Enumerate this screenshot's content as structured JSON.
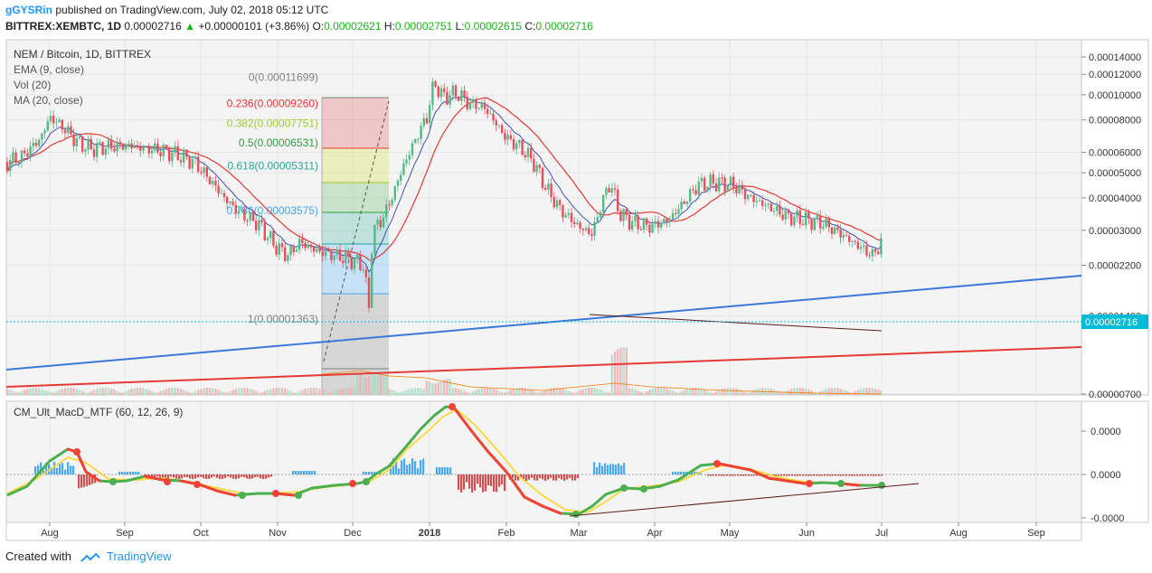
{
  "header": {
    "author": "gGYSRin",
    "published_text": "published on TradingView.com, July 02, 2018 05:12 UTC",
    "symbol": "BITTREX:XEMBTC, 1D",
    "price": "0.00002716",
    "change_icon": "up-triangle-icon",
    "change": "+0.00000101 (+3.86%)",
    "o_label": "O:",
    "o": "0.00002621",
    "h_label": "H:",
    "h": "0.00002751",
    "l_label": "L:",
    "l": "0.00002615",
    "c_label": "C:",
    "c": "0.00002716"
  },
  "legend": {
    "title": "NEM / Bitcoin, 1D, BITTREX",
    "ema": "EMA (9, close)",
    "vol": "Vol (20)",
    "ma": "MA (20, close)"
  },
  "fib": {
    "levels": [
      {
        "label": "0(0.00011699)",
        "value": 0.00011699,
        "color": "#808080"
      },
      {
        "label": "0.236(0.00009260)",
        "value": 9.26e-05,
        "color": "#e53935"
      },
      {
        "label": "0.382(0.00007751)",
        "value": 7.751e-05,
        "color": "#9ccc2d"
      },
      {
        "label": "0.5(0.00006531)",
        "value": 6.531e-05,
        "color": "#2e9e3e"
      },
      {
        "label": "0.618(0.00005311)",
        "value": 5.311e-05,
        "color": "#26a69a"
      },
      {
        "label": "0.786(0.00003575)",
        "value": 3.575e-05,
        "color": "#42a5f5"
      },
      {
        "label": "1(0.00001363)",
        "value": 1.363e-05,
        "color": "#808080"
      }
    ]
  },
  "price_axis": {
    "ticks": [
      "0.00014000",
      "0.00012000",
      "0.00010000",
      "0.00008000",
      "0.00006000",
      "0.00005000",
      "0.00004000",
      "0.00003000",
      "0.00002200",
      "0.00001400",
      "0.00000700"
    ],
    "tick_values": [
      0.00014,
      0.00012,
      0.0001,
      8e-05,
      6e-05,
      5e-05,
      4e-05,
      3e-05,
      2.2e-05,
      1.4e-05,
      7e-06
    ],
    "current_label": "0.00002716",
    "current_color": "#00bcd4"
  },
  "macd": {
    "title": "CM_Ult_MacD_MTF (60, 12, 26, 9)",
    "ticks": [
      "0.0000",
      "0.0000",
      "-0.0000"
    ]
  },
  "time_axis": {
    "labels": [
      "Aug",
      "Sep",
      "Oct",
      "Nov",
      "Dec",
      "2018",
      "Feb",
      "Mar",
      "Apr",
      "May",
      "Jun",
      "Jul",
      "Aug",
      "Sep"
    ]
  },
  "footer": {
    "created_with": "Created with",
    "brand": "TradingView",
    "logo_icon": "tradingview-logo-icon"
  },
  "chart_data": {
    "type": "candlestick",
    "title": "NEM / Bitcoin, 1D, BITTREX",
    "scale": "log",
    "ylim": [
      7e-06,
      0.00014
    ],
    "series": [
      {
        "name": "close",
        "values": [
          5.5e-05,
          6.7e-05,
          8.4e-05,
          7e-05,
          6.4e-05,
          6.2e-05,
          6.3e-05,
          5.8e-05,
          5.5e-05,
          4.2e-05,
          3.1e-05,
          2.5e-05,
          2.4e-05,
          2.6e-05,
          2.3e-05,
          2.6e-05,
          2.7e-05,
          6e-05,
          0.00011,
          0.0001,
          8.8e-05,
          7.2e-05,
          5.5e-05,
          3.9e-05,
          3e-05,
          4.7e-05,
          3.3e-05,
          3.2e-05,
          3.3e-05,
          4.1e-05,
          4.6e-05,
          4.4e-05,
          3.8e-05,
          3.5e-05,
          3.2e-05,
          2.7e-05,
          2.716e-05
        ]
      }
    ],
    "grid": true
  }
}
